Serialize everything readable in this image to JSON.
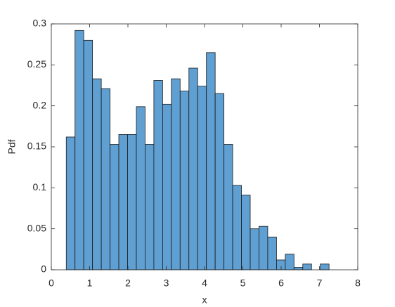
{
  "chart_data": {
    "type": "histogram",
    "xlabel": "x",
    "ylabel": "Pdf",
    "bins": [
      0.39,
      0.619,
      0.847,
      1.076,
      1.305,
      1.534,
      1.762,
      1.991,
      2.22,
      2.448,
      2.677,
      2.906,
      3.134,
      3.363,
      3.592,
      3.821,
      4.049,
      4.278,
      4.507,
      4.735,
      4.964,
      5.193,
      5.421,
      5.65,
      5.879,
      6.108,
      6.336,
      6.565,
      6.794,
      7.022,
      7.251
    ],
    "values": [
      0.162,
      0.292,
      0.28,
      0.233,
      0.221,
      0.153,
      0.165,
      0.165,
      0.199,
      0.153,
      0.231,
      0.202,
      0.233,
      0.218,
      0.246,
      0.224,
      0.265,
      0.215,
      0.153,
      0.103,
      0.091,
      0.05,
      0.053,
      0.04,
      0.012,
      0.019,
      0.003,
      0.007,
      0,
      0.007
    ],
    "color": "#5f9fd1",
    "xlim": [
      0,
      8
    ],
    "xticks": [
      0,
      1,
      2,
      3,
      4,
      5,
      6,
      7,
      8
    ],
    "ylim": [
      0,
      0.3
    ],
    "yticks": [
      0,
      0.05,
      0.1,
      0.15,
      0.2,
      0.25,
      0.3
    ]
  }
}
